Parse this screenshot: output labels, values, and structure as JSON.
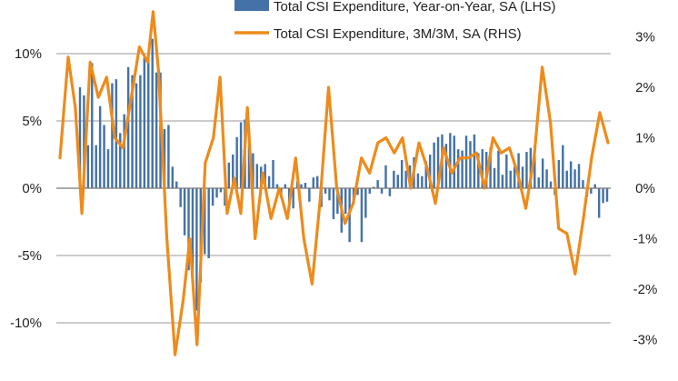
{
  "chart_data": {
    "type": "bar+line",
    "legend": {
      "placement": "top",
      "entries": [
        {
          "label": "Total CSI Expenditure, Year-on-Year, SA (LHS)",
          "marker": "bar",
          "color": "#4472a8"
        },
        {
          "label": "Total CSI Expenditure, 3M/3M, SA (RHS)",
          "marker": "line",
          "color": "#ed8b1c"
        }
      ]
    },
    "left_axis": {
      "ylim": [
        -12,
        13
      ],
      "ticks": [
        10,
        5,
        0,
        -5,
        -10
      ],
      "tick_labels": [
        "10%",
        "5%",
        "0%",
        "-5%",
        "-10%"
      ]
    },
    "right_axis": {
      "ylim": [
        -3.25,
        3.25
      ],
      "ticks": [
        3,
        2,
        1,
        0,
        -1,
        -2,
        -3
      ],
      "tick_labels": [
        "3%",
        "2%",
        "1%",
        "0%",
        "-1%",
        "-2%",
        "-3%"
      ]
    },
    "grid": true,
    "colors": {
      "bars": "#4472a8",
      "line": "#ed8b1c",
      "grid": "#9a9a9a",
      "zero": "#777777"
    },
    "series": [
      {
        "name": "Total CSI Expenditure, Year-on-Year, SA (LHS)",
        "kind": "bar",
        "axis": "left",
        "values": [
          7.5,
          6.9,
          3.2,
          9.3,
          3.2,
          6.1,
          4.7,
          2.9,
          7.8,
          8.1,
          4.1,
          5.5,
          9.0,
          8.4,
          7.8,
          8.4,
          9.7,
          10.0,
          11.1,
          8.6,
          8.6,
          4.4,
          4.7,
          1.6,
          0.5,
          -1.4,
          -3.5,
          -6.1,
          -6.7,
          -9.1,
          -7.0,
          -4.9,
          -5.2,
          -1.3,
          -0.7,
          -0.3,
          -1.3,
          1.9,
          2.5,
          3.8,
          4.9,
          5.1,
          3.2,
          2.6,
          1.8,
          1.6,
          1.8,
          0.9,
          2.1,
          0.3,
          -0.7,
          0.3,
          -1.6,
          -1.5,
          0.5,
          0.3,
          0.4,
          -1.0,
          0.8,
          0.9,
          -1.4,
          -0.4,
          -0.9,
          -2.3,
          -1.9,
          -3.3,
          -1.9,
          -4.0,
          -1.2,
          -0.5,
          -4.0,
          -2.2,
          -0.4,
          0.1,
          0.6,
          -0.4,
          1.7,
          -0.6,
          1.3,
          1.0,
          2.1,
          1.3,
          1.7,
          2.3,
          1.1,
          0.9,
          2.0,
          2.5,
          3.4,
          3.8,
          4.0,
          3.3,
          4.1,
          3.9,
          2.9,
          2.8,
          3.9,
          3.5,
          4.0,
          2.6,
          2.9,
          2.7,
          3.0,
          1.5,
          2.8,
          1.0,
          2.5,
          1.3,
          1.6,
          2.6,
          1.6,
          2.7,
          3.0,
          2.5,
          0.8,
          2.2,
          1.4,
          0.5,
          -0.5,
          2.1,
          3.2,
          1.3,
          2.0,
          1.4,
          1.8,
          0.6,
          -0.6,
          -0.4,
          0.3,
          -2.2,
          -1.1,
          -1.0
        ]
      },
      {
        "name": "Total CSI Expenditure, 3M/3M, SA (RHS)",
        "kind": "line",
        "axis": "right",
        "x": [
          0,
          0.015,
          0.028,
          0.04,
          0.055,
          0.07,
          0.085,
          0.1,
          0.115,
          0.13,
          0.145,
          0.16,
          0.17,
          0.18,
          0.195,
          0.21,
          0.225,
          0.237,
          0.25,
          0.265,
          0.28,
          0.292,
          0.305,
          0.318,
          0.33,
          0.342,
          0.356,
          0.37,
          0.385,
          0.4,
          0.415,
          0.43,
          0.445,
          0.46,
          0.475,
          0.49,
          0.505,
          0.52,
          0.535,
          0.55,
          0.565,
          0.58,
          0.595,
          0.61,
          0.625,
          0.64,
          0.655,
          0.67,
          0.685,
          0.7,
          0.715,
          0.73,
          0.745,
          0.76,
          0.775,
          0.79,
          0.805,
          0.82,
          0.835,
          0.85,
          0.865,
          0.88,
          0.895,
          0.91,
          0.925,
          0.94,
          0.955,
          0.97,
          0.985,
          1.0
        ],
        "values": [
          0.6,
          2.6,
          1.6,
          -0.5,
          2.5,
          1.8,
          2.2,
          1.0,
          0.8,
          1.8,
          2.8,
          2.5,
          3.5,
          2.3,
          -1.0,
          -3.3,
          -2.2,
          -1.0,
          -3.1,
          0.5,
          1.0,
          2.2,
          -0.5,
          0.2,
          -0.5,
          1.6,
          -1.0,
          0.3,
          -0.6,
          0.0,
          -0.6,
          0.6,
          -1.0,
          -1.9,
          -0.2,
          2.0,
          0.0,
          -0.7,
          -0.3,
          0.6,
          0.3,
          0.9,
          1.0,
          0.7,
          1.0,
          0.0,
          0.9,
          0.4,
          -0.3,
          0.8,
          0.3,
          0.6,
          0.6,
          0.7,
          0.0,
          1.0,
          0.7,
          0.8,
          0.3,
          -0.4,
          0.6,
          2.4,
          1.3,
          -0.8,
          -0.9,
          -1.7,
          -0.6,
          0.6,
          1.5,
          0.9
        ]
      }
    ]
  }
}
